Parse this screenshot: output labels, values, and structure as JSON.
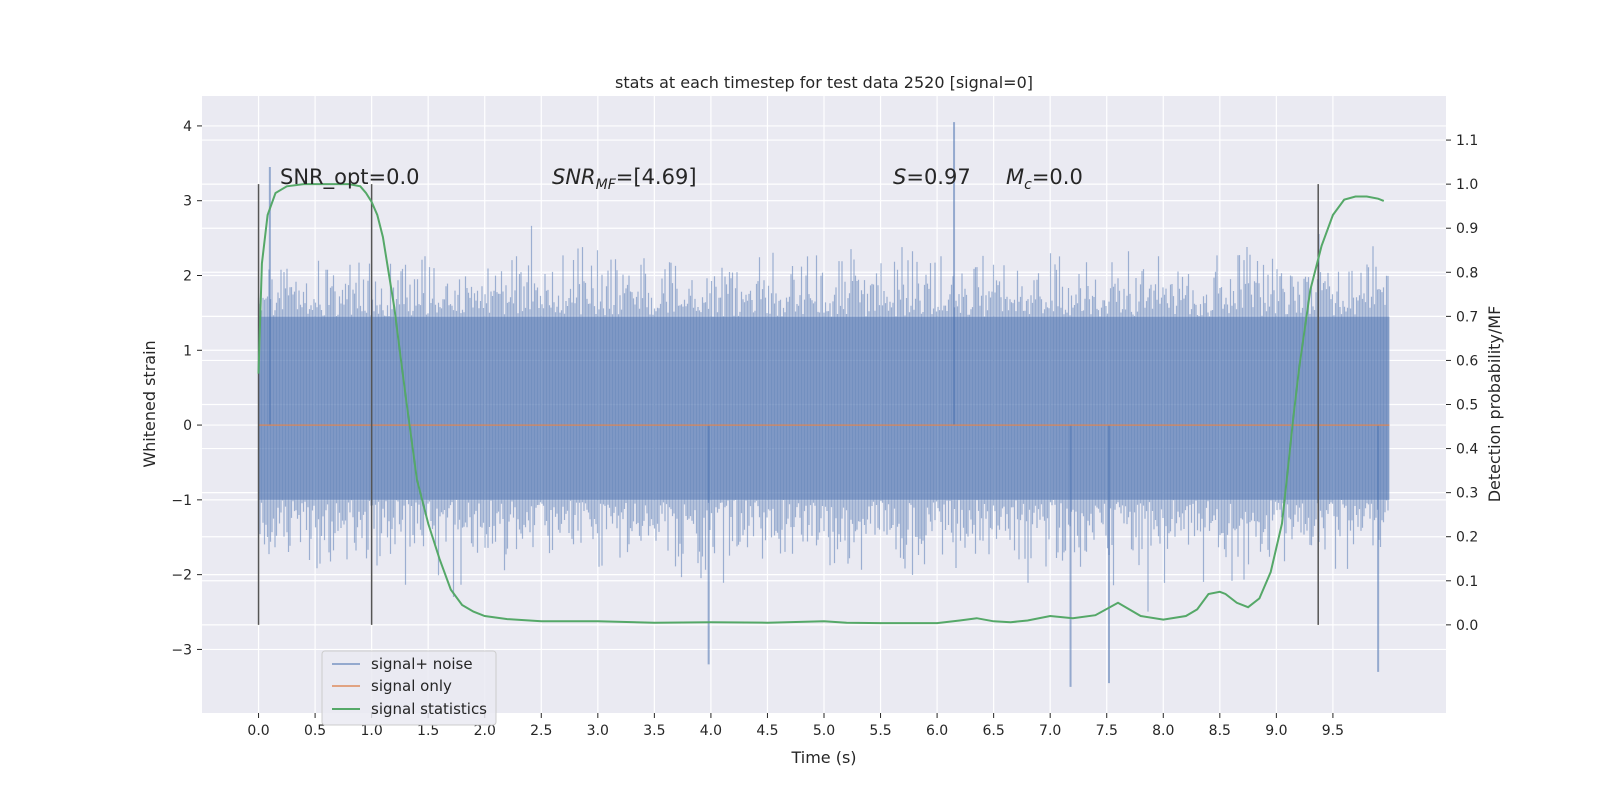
{
  "chart_data": {
    "type": "line",
    "title": "stats at each timestep for test data 2520 [signal=0]",
    "xlabel": "Time (s)",
    "ylabel": "Whitened strain",
    "y2label": "Detection probability/MF",
    "xlim": [
      -0.5,
      10.5
    ],
    "ylim": [
      -3.85,
      4.4
    ],
    "y2lim": [
      -0.2,
      1.2
    ],
    "xticks": [
      "0.0",
      "0.5",
      "1.0",
      "1.5",
      "2.0",
      "2.5",
      "3.0",
      "3.5",
      "4.0",
      "4.5",
      "5.0",
      "5.5",
      "6.0",
      "6.5",
      "7.0",
      "7.5",
      "8.0",
      "8.5",
      "9.0",
      "9.5"
    ],
    "yticks": [
      "4",
      "3",
      "2",
      "1",
      "0",
      "−1",
      "−2",
      "−3"
    ],
    "y2ticks": [
      "1.1",
      "1.0",
      "0.9",
      "0.8",
      "0.7",
      "0.6",
      "0.5",
      "0.4",
      "0.3",
      "0.2",
      "0.1",
      "0.0"
    ],
    "grid": true,
    "legend_position": "lower-left",
    "annotations": {
      "snr_opt": "SNR_opt=0.0",
      "snr_mf_base": "SNR",
      "snr_mf_sub": "MF",
      "snr_mf_value": "=[4.69]",
      "s_var": "S",
      "s_value": "=0.97",
      "mc_var": "M",
      "mc_sub": "c",
      "mc_value": "=0.0"
    },
    "colors": {
      "background": "#eaeaf2",
      "noise": "#4c72b0",
      "signal": "#dd8452",
      "stats": "#55a868",
      "marker": "#555555"
    },
    "series": [
      {
        "name": "signal+ noise",
        "axis": "left",
        "x_range": [
          0,
          10.0
        ],
        "band_core": [
          -1.0,
          1.45
        ],
        "band_peak_positive": 3.2,
        "band_peak_negative": -3.5,
        "notable_peaks": [
          [
            0.1,
            3.45
          ],
          [
            6.15,
            4.05
          ],
          [
            3.98,
            -3.2
          ],
          [
            7.18,
            -3.5
          ],
          [
            7.52,
            -3.45
          ],
          [
            9.9,
            -3.3
          ]
        ]
      },
      {
        "name": "signal only",
        "axis": "left",
        "x": [
          0,
          10.0
        ],
        "y": [
          0,
          0
        ]
      },
      {
        "name": "signal statistics",
        "axis": "right",
        "x": [
          0,
          0.03,
          0.08,
          0.15,
          0.25,
          0.4,
          0.6,
          0.8,
          0.9,
          0.95,
          1.0,
          1.05,
          1.1,
          1.15,
          1.2,
          1.25,
          1.3,
          1.4,
          1.5,
          1.6,
          1.7,
          1.8,
          1.9,
          2.0,
          2.2,
          2.5,
          3.0,
          3.5,
          4.0,
          4.5,
          5.0,
          5.2,
          5.5,
          6.0,
          6.2,
          6.35,
          6.5,
          6.65,
          6.8,
          7.0,
          7.2,
          7.4,
          7.6,
          7.8,
          8.0,
          8.2,
          8.3,
          8.4,
          8.5,
          8.55,
          8.65,
          8.75,
          8.85,
          8.95,
          9.05,
          9.1,
          9.15,
          9.2,
          9.3,
          9.4,
          9.5,
          9.6,
          9.7,
          9.8,
          9.9,
          9.95
        ],
        "y": [
          0.57,
          0.82,
          0.93,
          0.98,
          0.995,
          1.0,
          1.0,
          1.0,
          0.995,
          0.98,
          0.96,
          0.93,
          0.88,
          0.8,
          0.72,
          0.62,
          0.52,
          0.33,
          0.23,
          0.15,
          0.08,
          0.045,
          0.03,
          0.02,
          0.013,
          0.008,
          0.008,
          0.005,
          0.006,
          0.005,
          0.008,
          0.005,
          0.004,
          0.004,
          0.01,
          0.015,
          0.008,
          0.006,
          0.01,
          0.02,
          0.015,
          0.022,
          0.05,
          0.02,
          0.012,
          0.02,
          0.035,
          0.07,
          0.075,
          0.07,
          0.05,
          0.04,
          0.06,
          0.12,
          0.23,
          0.35,
          0.47,
          0.58,
          0.76,
          0.86,
          0.93,
          0.965,
          0.972,
          0.972,
          0.967,
          0.962
        ]
      }
    ],
    "vertical_markers": [
      0.0,
      1.0,
      9.37
    ]
  }
}
